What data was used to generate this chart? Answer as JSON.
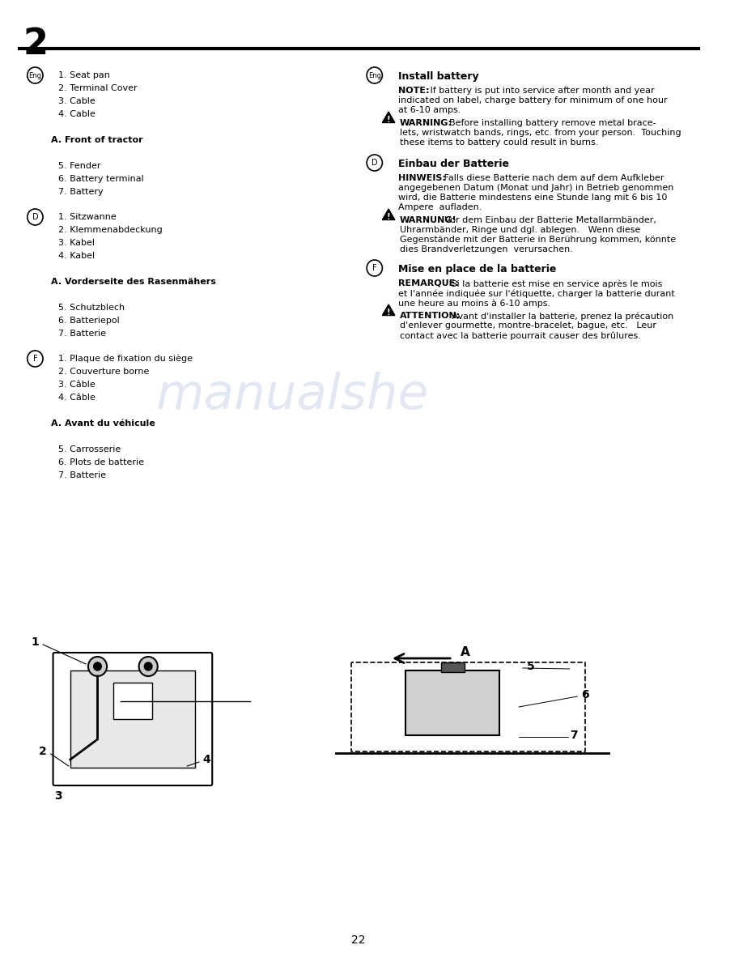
{
  "page_number": "2",
  "background_color": "#ffffff",
  "text_color": "#000000",
  "watermark_text": "manualshe",
  "watermark_color": "#c8d0e8",
  "page_num_label": "22",
  "left_col": {
    "eng_section": {
      "circle_label": "Eng",
      "items": [
        "1. Seat pan",
        "2. Terminal Cover",
        "3. Cable",
        "4. Cable",
        "",
        "A. Front of tractor",
        "",
        "5. Fender",
        "6. Battery terminal",
        "7. Battery"
      ]
    },
    "d_section": {
      "circle_label": "D",
      "items": [
        "1. Sitzwanne",
        "2. Klemmenabdeckung",
        "3. Kabel",
        "4. Kabel",
        "",
        "A. Vorderseite des Rasenmähers",
        "",
        "5. Schutzblech",
        "6. Batteriepol",
        "7. Batterie"
      ]
    },
    "f_section": {
      "circle_label": "F",
      "items": [
        "1. Plaque de fixation du siège",
        "2. Couverture borne",
        "3. Câble",
        "4. Câble",
        "",
        "A. Avant du véhicule",
        "",
        "5. Carrosserie",
        "6. Plots de batterie",
        "7. Batterie"
      ]
    }
  },
  "right_col": {
    "eng_install": {
      "circle_label": "Eng",
      "heading": "Install battery",
      "note_label": "NOTE:",
      "note_text": " If battery is put into service after month and year indicated on label, charge battery for minimum of one hour at 6-10 amps.",
      "warning_text": "WARNING:  Before installing battery remove metal bracelets, wristwatch bands, rings, etc. from your person.  Touching these items to battery could result in burns."
    },
    "d_install": {
      "circle_label": "D",
      "heading": "Einbau der Batterie",
      "note_label": "HINWEIS:",
      "note_text": " Falls diese Batterie nach dem auf dem Aufkleber angegebenen Datum (Monat und Jahr) in Betrieb genommen wird, die Batterie mindestens eine Stunde lang mit 6 bis 10 Ampere  aufladen.",
      "warning_text": "WARNUNG!  Vor dem Einbau der Batterie Metallarmbänder, Uhrarmbänder, Ringe und dgl. ablegen.   Wenn diese Gegenstände mit der Batterie in Berührung kommen, könnte dies Brandverletzungen  verursachen."
    },
    "f_install": {
      "circle_label": "F",
      "heading": "Mise en place de la batterie",
      "note_label": "REMARQUE:",
      "note_text": " Si la batterie est mise en service après le mois et l'année indiquée sur l'étiquette, charger la batterie durant une heure au moins à 6-10 amps.",
      "warning_text": "ATTENTION:  Avant d'installer la batterie, prenez la précaution d'enlever gourmette, montre-bracelet, bague, etc.   Leur contact avec la batterie pourrait causer des brûlures."
    }
  }
}
